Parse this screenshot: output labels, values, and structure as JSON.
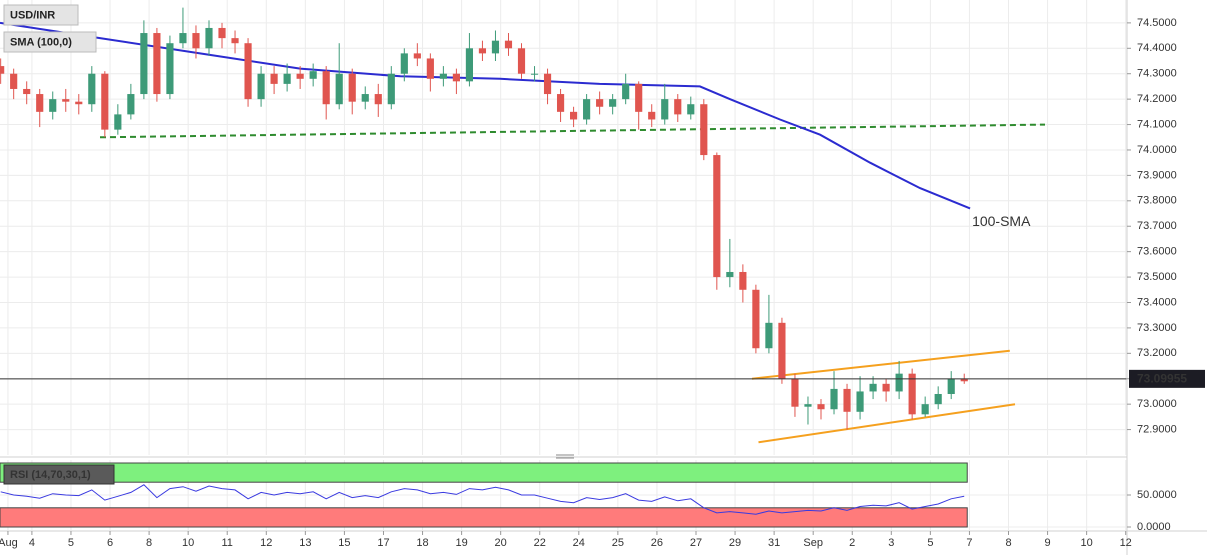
{
  "chart_data": {
    "type": "candlestick",
    "title": "USD/INR",
    "up_color": "#3d9a78",
    "down_color": "#e0554f",
    "grid": true,
    "x": [
      0,
      1,
      2,
      3,
      4,
      5,
      6,
      7,
      8,
      9,
      10,
      11,
      12,
      13,
      14,
      15,
      16,
      17,
      18,
      19,
      20,
      21,
      22,
      23,
      24,
      25,
      26,
      27,
      28,
      29,
      30,
      31,
      32,
      33,
      34,
      35,
      36,
      37,
      38,
      39,
      40,
      41,
      42,
      43,
      44,
      45,
      46,
      47,
      48,
      49,
      50,
      51,
      52,
      53,
      54,
      55,
      56,
      57,
      58,
      59,
      60,
      61,
      62,
      63,
      64,
      65,
      66,
      67,
      68,
      69,
      70,
      71,
      72,
      73,
      74
    ],
    "open": [
      74.33,
      74.3,
      74.24,
      74.22,
      74.15,
      74.2,
      74.19,
      74.18,
      74.3,
      74.08,
      74.14,
      74.22,
      74.46,
      74.22,
      74.42,
      74.46,
      74.4,
      74.48,
      74.44,
      74.42,
      74.2,
      74.3,
      74.26,
      74.3,
      74.28,
      74.31,
      74.18,
      74.3,
      74.19,
      74.22,
      74.18,
      74.3,
      74.38,
      74.36,
      74.28,
      74.3,
      74.27,
      74.4,
      74.38,
      74.43,
      74.4,
      74.3,
      74.3,
      74.22,
      74.15,
      74.12,
      74.2,
      74.17,
      74.2,
      74.26,
      74.15,
      74.12,
      74.2,
      74.14,
      74.18,
      73.98,
      73.5,
      73.52,
      73.45,
      73.22,
      73.32,
      73.1,
      72.99,
      73.0,
      72.98,
      73.06,
      72.97,
      73.05,
      73.08,
      73.05,
      73.12,
      72.96,
      73.0,
      73.04,
      73.1
    ],
    "high": [
      74.36,
      74.32,
      74.27,
      74.24,
      74.23,
      74.24,
      74.22,
      74.33,
      74.31,
      74.18,
      74.26,
      74.51,
      74.48,
      74.45,
      74.56,
      74.49,
      74.51,
      74.5,
      74.47,
      74.44,
      74.33,
      74.33,
      74.34,
      74.33,
      74.34,
      74.33,
      74.42,
      74.32,
      74.25,
      74.26,
      74.33,
      74.4,
      74.42,
      74.38,
      74.33,
      74.32,
      74.46,
      74.43,
      74.47,
      74.46,
      74.42,
      74.33,
      74.32,
      74.24,
      74.17,
      74.22,
      74.23,
      74.22,
      74.3,
      74.27,
      74.18,
      74.26,
      74.22,
      74.21,
      74.2,
      73.99,
      73.65,
      73.55,
      73.47,
      73.43,
      73.34,
      73.12,
      73.03,
      73.02,
      73.13,
      73.08,
      73.11,
      73.11,
      73.1,
      73.17,
      73.14,
      73.03,
      73.07,
      73.13,
      73.12
    ],
    "low": [
      74.26,
      74.2,
      74.18,
      74.09,
      74.12,
      74.15,
      74.14,
      74.15,
      74.05,
      74.06,
      74.12,
      74.2,
      74.19,
      74.2,
      74.4,
      74.36,
      74.37,
      74.4,
      74.38,
      74.17,
      74.17,
      74.22,
      74.23,
      74.24,
      74.25,
      74.12,
      74.16,
      74.14,
      74.16,
      74.13,
      74.16,
      74.27,
      74.33,
      74.23,
      74.25,
      74.22,
      74.25,
      74.35,
      74.35,
      74.37,
      74.28,
      74.27,
      74.18,
      74.11,
      74.09,
      74.1,
      74.14,
      74.14,
      74.18,
      74.08,
      74.09,
      74.1,
      74.11,
      74.12,
      73.96,
      73.45,
      73.46,
      73.4,
      73.2,
      73.2,
      73.08,
      72.95,
      72.92,
      72.94,
      72.96,
      72.9,
      72.94,
      73.02,
      73.01,
      73.02,
      72.94,
      72.95,
      72.98,
      73.02,
      73.08
    ],
    "close": [
      74.3,
      74.24,
      74.22,
      74.15,
      74.2,
      74.19,
      74.18,
      74.3,
      74.08,
      74.14,
      74.22,
      74.46,
      74.22,
      74.42,
      74.46,
      74.4,
      74.48,
      74.44,
      74.42,
      74.2,
      74.3,
      74.26,
      74.3,
      74.28,
      74.31,
      74.18,
      74.3,
      74.19,
      74.22,
      74.18,
      74.3,
      74.38,
      74.36,
      74.28,
      74.3,
      74.27,
      74.4,
      74.38,
      74.43,
      74.4,
      74.3,
      74.3,
      74.22,
      74.15,
      74.12,
      74.2,
      74.17,
      74.2,
      74.26,
      74.15,
      74.12,
      74.2,
      74.14,
      74.18,
      73.98,
      73.5,
      73.52,
      73.45,
      73.22,
      73.32,
      73.1,
      72.99,
      73.0,
      72.98,
      73.06,
      72.97,
      73.05,
      73.08,
      73.05,
      73.12,
      72.96,
      73.0,
      73.04,
      73.1,
      73.09
    ],
    "xlim": [
      -0.05,
      86.5
    ],
    "ylim": [
      72.8,
      74.59
    ],
    "xticks": [
      {
        "value": 0.56,
        "label": "Aug"
      },
      {
        "value": 2.4,
        "label": "4"
      },
      {
        "value": 5.4,
        "label": "5"
      },
      {
        "value": 8.4,
        "label": "6"
      },
      {
        "value": 11.4,
        "label": "8"
      },
      {
        "value": 14.4,
        "label": "10"
      },
      {
        "value": 17.4,
        "label": "11"
      },
      {
        "value": 20.4,
        "label": "12"
      },
      {
        "value": 23.4,
        "label": "13"
      },
      {
        "value": 26.4,
        "label": "15"
      },
      {
        "value": 29.4,
        "label": "17"
      },
      {
        "value": 32.4,
        "label": "18"
      },
      {
        "value": 35.4,
        "label": "19"
      },
      {
        "value": 38.4,
        "label": "20"
      },
      {
        "value": 41.4,
        "label": "22"
      },
      {
        "value": 44.4,
        "label": "24"
      },
      {
        "value": 47.4,
        "label": "25"
      },
      {
        "value": 50.4,
        "label": "26"
      },
      {
        "value": 53.4,
        "label": "27"
      },
      {
        "value": 56.4,
        "label": "29"
      },
      {
        "value": 59.4,
        "label": "31"
      },
      {
        "value": 62.4,
        "label": "Sep"
      },
      {
        "value": 65.4,
        "label": "2"
      },
      {
        "value": 68.4,
        "label": "3"
      },
      {
        "value": 71.4,
        "label": "5"
      },
      {
        "value": 74.4,
        "label": "7"
      },
      {
        "value": 77.4,
        "label": "8"
      },
      {
        "value": 80.4,
        "label": "9"
      },
      {
        "value": 83.4,
        "label": "10"
      },
      {
        "value": 86.4,
        "label": "12"
      }
    ],
    "yticks": [
      {
        "value": 72.9,
        "label": "72.9000"
      },
      {
        "value": 73.0,
        "label": "73.0000"
      },
      {
        "value": 73.1,
        "label": "73.1000"
      },
      {
        "value": 73.2,
        "label": "73.2000"
      },
      {
        "value": 73.3,
        "label": "73.3000"
      },
      {
        "value": 73.4,
        "label": "73.4000"
      },
      {
        "value": 73.5,
        "label": "73.5000"
      },
      {
        "value": 73.6,
        "label": "73.6000"
      },
      {
        "value": 73.7,
        "label": "73.7000"
      },
      {
        "value": 73.8,
        "label": "73.8000"
      },
      {
        "value": 73.9,
        "label": "73.9000"
      },
      {
        "value": 74.0,
        "label": "74.0000"
      },
      {
        "value": 74.1,
        "label": "74.1000"
      },
      {
        "value": 74.2,
        "label": "74.2000"
      },
      {
        "value": 74.3,
        "label": "74.3000"
      },
      {
        "value": 74.4,
        "label": "74.4000"
      },
      {
        "value": 74.5,
        "label": "74.5000"
      }
    ],
    "last_price": 73.09955,
    "overlays": [
      {
        "name": "SMA (100,0)",
        "label": "100-SMA",
        "color": "#2b2bd0",
        "label_color": "#6b6bdc",
        "x": [
          -0.05,
          7.63,
          15.31,
          23.0,
          30.7,
          38.35,
          46.0,
          53.7,
          56.0,
          59.85,
          62.93,
          66.77,
          70.6,
          74.45
        ],
        "values": [
          74.5,
          74.44,
          74.38,
          74.32,
          74.29,
          74.28,
          74.26,
          74.25,
          74.2,
          74.12,
          74.06,
          73.95,
          73.85,
          73.77
        ]
      }
    ],
    "trendlines": [
      {
        "color": "#2e8b2e",
        "dashed": true,
        "x": [
          7.63,
          80.2
        ],
        "values": [
          74.05,
          74.1
        ]
      },
      {
        "color": "#f5a01e",
        "dashed": false,
        "x": [
          57.7,
          77.5
        ],
        "values": [
          73.1,
          73.21
        ]
      },
      {
        "color": "#f5a01e",
        "dashed": false,
        "x": [
          58.2,
          77.9
        ],
        "values": [
          72.85,
          73.0
        ]
      }
    ],
    "rsi": {
      "type": "line",
      "title": "RSI (14,70,30,1)",
      "color": "#3a3ae0",
      "levels": [
        30,
        70
      ],
      "ylim": [
        -4.7,
        104.7
      ],
      "yticks": [
        {
          "value": 0,
          "label": "0.0000"
        },
        {
          "value": 50,
          "label": "50.0000"
        }
      ],
      "values": [
        55,
        50,
        48,
        45,
        52,
        50,
        49,
        58,
        42,
        48,
        54,
        66,
        46,
        60,
        63,
        56,
        64,
        60,
        58,
        44,
        54,
        50,
        54,
        52,
        55,
        44,
        54,
        46,
        49,
        46,
        55,
        60,
        58,
        52,
        54,
        51,
        60,
        58,
        62,
        58,
        50,
        50,
        45,
        40,
        38,
        46,
        43,
        46,
        52,
        42,
        40,
        47,
        41,
        44,
        30,
        22,
        24,
        22,
        20,
        25,
        22,
        24,
        26,
        25,
        30,
        26,
        32,
        34,
        33,
        38,
        28,
        32,
        36,
        44,
        48
      ]
    }
  }
}
